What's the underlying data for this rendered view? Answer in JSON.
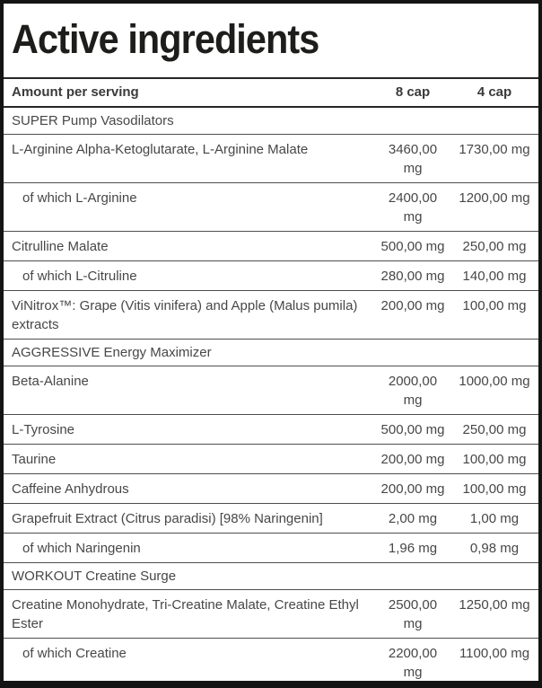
{
  "title": "Active ingredients",
  "table": {
    "header": {
      "label": "Amount per serving",
      "col8": "8 cap",
      "col4": "4 cap"
    },
    "rows": [
      {
        "type": "section",
        "label": "SUPER Pump Vasodilators"
      },
      {
        "type": "item",
        "label": "L-Arginine Alpha-Ketoglutarate, L-Arginine Malate",
        "v8": "3460,00\nmg",
        "v4": "1730,00 mg"
      },
      {
        "type": "sub",
        "label": "of which L-Arginine",
        "v8": "2400,00\nmg",
        "v4": "1200,00 mg"
      },
      {
        "type": "item",
        "label": "Citrulline Malate",
        "v8": "500,00 mg",
        "v4": "250,00 mg"
      },
      {
        "type": "sub",
        "label": "of which L-Citruline",
        "v8": "280,00 mg",
        "v4": "140,00 mg"
      },
      {
        "type": "item",
        "label": "ViNitrox™: Grape (Vitis vinifera) and Apple (Malus pumila) extracts",
        "v8": "200,00 mg",
        "v4": "100,00 mg"
      },
      {
        "type": "section",
        "label": "AGGRESSIVE Energy Maximizer"
      },
      {
        "type": "item",
        "label": "Beta-Alanine",
        "v8": "2000,00\nmg",
        "v4": "1000,00 mg"
      },
      {
        "type": "item",
        "label": "L-Tyrosine",
        "v8": "500,00 mg",
        "v4": "250,00 mg"
      },
      {
        "type": "item",
        "label": "Taurine",
        "v8": "200,00 mg",
        "v4": "100,00 mg"
      },
      {
        "type": "item",
        "label": "Caffeine Anhydrous",
        "v8": "200,00 mg",
        "v4": "100,00 mg"
      },
      {
        "type": "item",
        "label": "Grapefruit Extract (Citrus paradisi) [98% Naringenin]",
        "v8": "2,00 mg",
        "v4": "1,00 mg"
      },
      {
        "type": "sub",
        "label": "of which Naringenin",
        "v8": "1,96 mg",
        "v4": "0,98 mg"
      },
      {
        "type": "section",
        "label": "WORKOUT Creatine Surge"
      },
      {
        "type": "item",
        "label": "Creatine Monohydrate, Tri-Creatine Malate, Creatine Ethyl Ester",
        "v8": "2500,00\nmg",
        "v4": "1250,00 mg"
      },
      {
        "type": "sub",
        "label": "of which Creatine",
        "v8": "2200,00\nmg",
        "v4": "1100,00 mg"
      }
    ]
  }
}
